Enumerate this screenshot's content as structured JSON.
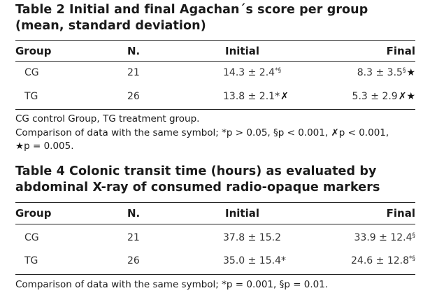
{
  "table2": {
    "title": "Table 2 Initial and final Agachan´s score per group (mean, standard deviation)",
    "headers": {
      "group": "Group",
      "n": "N.",
      "initial": "Initial",
      "final": "Final"
    },
    "rows": [
      {
        "group": "CG",
        "n": "21",
        "initial": "14.3 ± 2.4",
        "initial_sup": "*§",
        "initial_sym": "",
        "final": "8.3 ± 3.5",
        "final_sup": "§",
        "final_sym": "★"
      },
      {
        "group": "TG",
        "n": "26",
        "initial": "13.8 ± 2.1",
        "initial_sup": "*",
        "initial_sym": "✗",
        "final": "5.3 ± 2.9",
        "final_sup": "",
        "final_sym": "✗★"
      }
    ],
    "footnote_1": "CG control Group, TG treatment group.",
    "footnote_2": "Comparison of data with the same symbol; *p > 0.05, §p < 0.001, ✗p < 0.001,",
    "footnote_3": "★p = 0.005."
  },
  "table4": {
    "title": "Table 4 Colonic transit time (hours) as evaluated by abdominal X-ray of consumed radio-opaque markers",
    "headers": {
      "group": "Group",
      "n": "N.",
      "initial": "Initial",
      "final": "Final"
    },
    "rows": [
      {
        "group": "CG",
        "n": "21",
        "initial": "37.8 ± 15.2",
        "initial_sup": "",
        "final": "33.9 ± 12.4",
        "final_sup": "§"
      },
      {
        "group": "TG",
        "n": "26",
        "initial": "35.0 ± 15.4",
        "initial_sup": "*",
        "final": "24.6 ± 12.8",
        "final_sup": "*§"
      }
    ],
    "footnote_1": "Comparison of data with the same symbol; *p = 0.001, §p = 0.01."
  }
}
